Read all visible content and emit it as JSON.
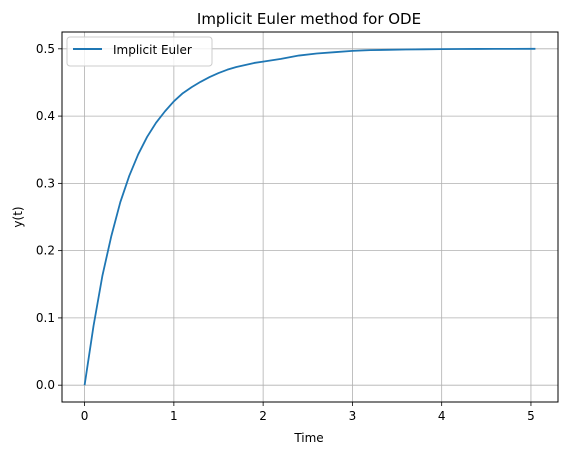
{
  "chart_data": {
    "type": "line",
    "title": "Implicit Euler method for ODE",
    "xlabel": "Time",
    "ylabel": "y(t)",
    "xlim": [
      -0.253,
      5.303
    ],
    "ylim": [
      -0.025,
      0.525
    ],
    "xticks": [
      0,
      1,
      2,
      3,
      4,
      5
    ],
    "xtick_labels": [
      "0",
      "1",
      "2",
      "3",
      "4",
      "5"
    ],
    "yticks": [
      0.0,
      0.1,
      0.2,
      0.3,
      0.4,
      0.5
    ],
    "ytick_labels": [
      "0.0",
      "0.1",
      "0.2",
      "0.3",
      "0.4",
      "0.5"
    ],
    "grid": true,
    "legend_position": "upper-left",
    "series": [
      {
        "name": "Implicit Euler",
        "color": "#1f77b4",
        "x": [
          0,
          0.1,
          0.2,
          0.3,
          0.4,
          0.5,
          0.6,
          0.7,
          0.8,
          0.9,
          1.0,
          1.1,
          1.2,
          1.3,
          1.4,
          1.5,
          1.6,
          1.7,
          1.8,
          1.9,
          2.0,
          2.2,
          2.4,
          2.6,
          2.8,
          3.0,
          3.2,
          3.4,
          3.6,
          3.8,
          4.0,
          4.2,
          4.4,
          4.6,
          4.8,
          5.05
        ],
        "y": [
          0.0,
          0.088,
          0.163,
          0.222,
          0.272,
          0.311,
          0.343,
          0.369,
          0.39,
          0.407,
          0.422,
          0.434,
          0.443,
          0.451,
          0.458,
          0.464,
          0.469,
          0.473,
          0.476,
          0.479,
          0.481,
          0.485,
          0.49,
          0.493,
          0.495,
          0.497,
          0.498,
          0.4985,
          0.499,
          0.4993,
          0.4995,
          0.4997,
          0.4998,
          0.4999,
          0.4999,
          0.5
        ]
      }
    ]
  }
}
